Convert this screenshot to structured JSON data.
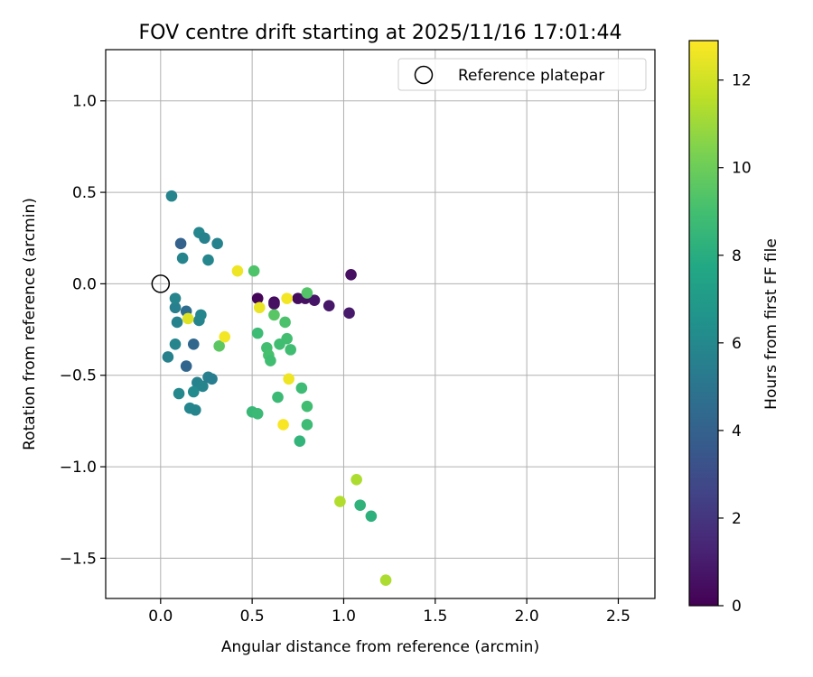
{
  "chart_data": {
    "type": "scatter",
    "title": "FOV centre drift starting at 2025/11/16 17:01:44",
    "xlabel": "Angular distance from reference (arcmin)",
    "ylabel": "Rotation from reference (arcmin)",
    "xlim": [
      -0.3,
      2.7
    ],
    "ylim": [
      -1.72,
      1.28
    ],
    "xticks": [
      0.0,
      0.5,
      1.0,
      1.5,
      2.0,
      2.5
    ],
    "xtick_labels": [
      "0.0",
      "0.5",
      "1.0",
      "1.5",
      "2.0",
      "2.5"
    ],
    "yticks": [
      1.0,
      0.5,
      0.0,
      -0.5,
      -1.0,
      -1.5
    ],
    "ytick_labels": [
      "1.0",
      "0.5",
      "0.0",
      "−0.5",
      "−1.0",
      "−1.5"
    ],
    "grid": true,
    "legend": {
      "label": "Reference platepar",
      "position": "top-right"
    },
    "reference_point": {
      "x": 0.0,
      "y": 0.0
    },
    "colorbar": {
      "label": "Hours from first FF file",
      "min": 0,
      "max": 12.9,
      "ticks": [
        0,
        2,
        4,
        6,
        8,
        10,
        12
      ],
      "tick_labels": [
        "0",
        "2",
        "4",
        "6",
        "8",
        "10",
        "12"
      ],
      "colormap": [
        "#440154",
        "#482475",
        "#414487",
        "#355f8d",
        "#2a788e",
        "#21918c",
        "#22a884",
        "#44bf70",
        "#7ad151",
        "#bddf26",
        "#fde725"
      ]
    },
    "points": [
      {
        "x": 0.53,
        "y": -0.08,
        "h": 0.1
      },
      {
        "x": 0.62,
        "y": -0.1,
        "h": 0.3
      },
      {
        "x": 0.62,
        "y": -0.11,
        "h": 0.5
      },
      {
        "x": 0.75,
        "y": -0.08,
        "h": 0.4
      },
      {
        "x": 0.79,
        "y": -0.08,
        "h": 0.6
      },
      {
        "x": 0.84,
        "y": -0.09,
        "h": 0.7
      },
      {
        "x": 0.92,
        "y": -0.12,
        "h": 0.8
      },
      {
        "x": 1.03,
        "y": -0.16,
        "h": 0.9
      },
      {
        "x": 1.04,
        "y": 0.05,
        "h": 0.5
      },
      {
        "x": 0.14,
        "y": -0.45,
        "h": 4.2
      },
      {
        "x": 0.11,
        "y": 0.22,
        "h": 4.0
      },
      {
        "x": 0.18,
        "y": -0.33,
        "h": 4.3
      },
      {
        "x": 0.14,
        "y": -0.15,
        "h": 4.6
      },
      {
        "x": 0.06,
        "y": 0.48,
        "h": 5.8
      },
      {
        "x": 0.21,
        "y": 0.28,
        "h": 5.9
      },
      {
        "x": 0.24,
        "y": 0.25,
        "h": 5.6
      },
      {
        "x": 0.31,
        "y": 0.22,
        "h": 5.7
      },
      {
        "x": 0.12,
        "y": 0.14,
        "h": 5.8
      },
      {
        "x": 0.26,
        "y": 0.13,
        "h": 5.9
      },
      {
        "x": 0.08,
        "y": -0.13,
        "h": 5.5
      },
      {
        "x": 0.08,
        "y": -0.08,
        "h": 5.8
      },
      {
        "x": 0.09,
        "y": -0.21,
        "h": 5.7
      },
      {
        "x": 0.21,
        "y": -0.2,
        "h": 5.8
      },
      {
        "x": 0.22,
        "y": -0.17,
        "h": 5.9
      },
      {
        "x": 0.08,
        "y": -0.33,
        "h": 5.8
      },
      {
        "x": 0.04,
        "y": -0.4,
        "h": 5.6
      },
      {
        "x": 0.2,
        "y": -0.54,
        "h": 5.7
      },
      {
        "x": 0.23,
        "y": -0.56,
        "h": 5.8
      },
      {
        "x": 0.26,
        "y": -0.51,
        "h": 5.5
      },
      {
        "x": 0.28,
        "y": -0.52,
        "h": 5.4
      },
      {
        "x": 0.1,
        "y": -0.6,
        "h": 6.0
      },
      {
        "x": 0.18,
        "y": -0.59,
        "h": 6.1
      },
      {
        "x": 0.16,
        "y": -0.68,
        "h": 5.9
      },
      {
        "x": 0.19,
        "y": -0.69,
        "h": 5.8
      },
      {
        "x": 0.51,
        "y": 0.07,
        "h": 9.3
      },
      {
        "x": 0.8,
        "y": -0.05,
        "h": 9.4
      },
      {
        "x": 0.62,
        "y": -0.17,
        "h": 9.5
      },
      {
        "x": 0.68,
        "y": -0.21,
        "h": 9.2
      },
      {
        "x": 0.53,
        "y": -0.27,
        "h": 8.8
      },
      {
        "x": 0.69,
        "y": -0.3,
        "h": 9.0
      },
      {
        "x": 0.65,
        "y": -0.33,
        "h": 8.9
      },
      {
        "x": 0.58,
        "y": -0.35,
        "h": 9.0
      },
      {
        "x": 0.71,
        "y": -0.36,
        "h": 8.9
      },
      {
        "x": 0.59,
        "y": -0.39,
        "h": 9.1
      },
      {
        "x": 0.6,
        "y": -0.42,
        "h": 8.9
      },
      {
        "x": 0.32,
        "y": -0.34,
        "h": 9.6
      },
      {
        "x": 0.64,
        "y": -0.62,
        "h": 8.7
      },
      {
        "x": 0.77,
        "y": -0.57,
        "h": 8.8
      },
      {
        "x": 0.8,
        "y": -0.67,
        "h": 8.9
      },
      {
        "x": 0.5,
        "y": -0.7,
        "h": 8.6
      },
      {
        "x": 0.53,
        "y": -0.71,
        "h": 8.7
      },
      {
        "x": 0.8,
        "y": -0.77,
        "h": 8.8
      },
      {
        "x": 0.76,
        "y": -0.86,
        "h": 8.4
      },
      {
        "x": 1.09,
        "y": -1.21,
        "h": 8.3
      },
      {
        "x": 1.15,
        "y": -1.27,
        "h": 8.2
      },
      {
        "x": 1.07,
        "y": -1.07,
        "h": 11.3
      },
      {
        "x": 0.98,
        "y": -1.19,
        "h": 11.4
      },
      {
        "x": 1.23,
        "y": -1.62,
        "h": 11.3
      },
      {
        "x": 0.42,
        "y": 0.07,
        "h": 12.6
      },
      {
        "x": 0.69,
        "y": -0.08,
        "h": 12.7
      },
      {
        "x": 0.54,
        "y": -0.13,
        "h": 12.5
      },
      {
        "x": 0.15,
        "y": -0.19,
        "h": 12.3
      },
      {
        "x": 0.35,
        "y": -0.29,
        "h": 12.7
      },
      {
        "x": 0.7,
        "y": -0.52,
        "h": 12.6
      },
      {
        "x": 0.67,
        "y": -0.77,
        "h": 12.8
      }
    ]
  }
}
